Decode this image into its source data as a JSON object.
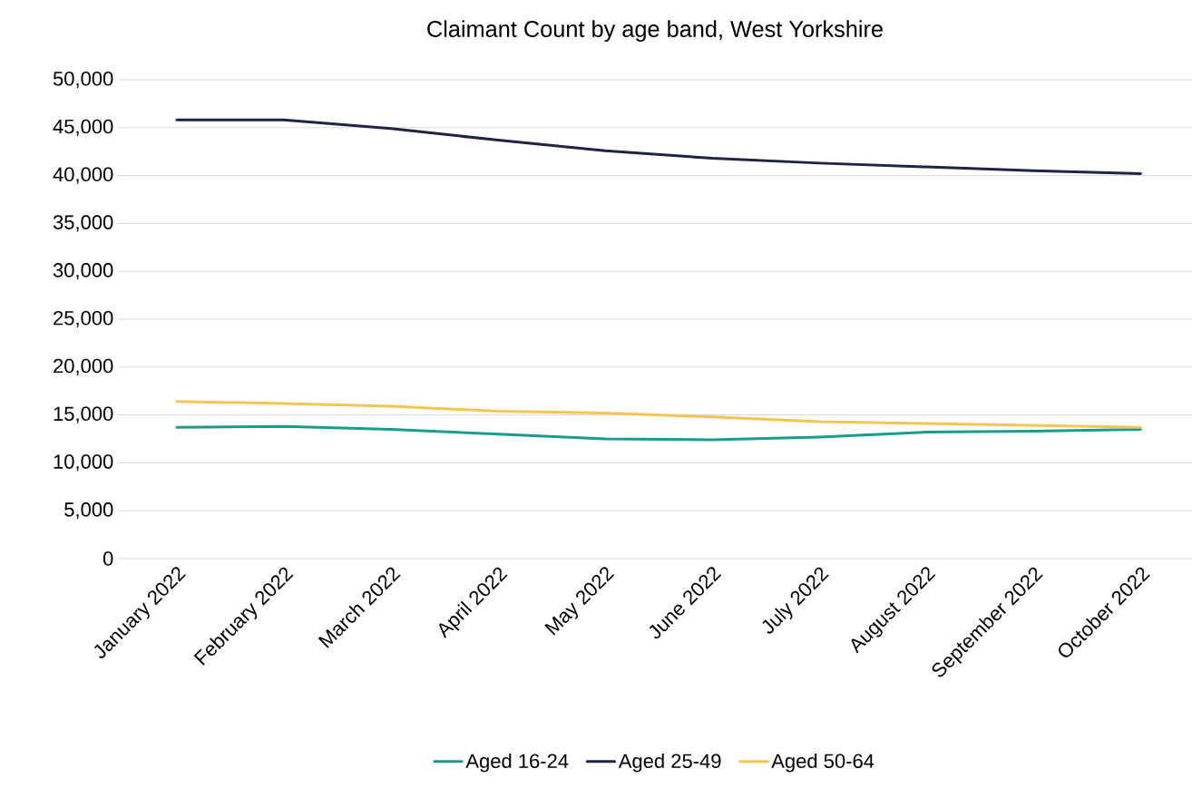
{
  "chart_data": {
    "type": "line",
    "title": "Claimant Count by age band, West Yorkshire",
    "categories": [
      "January 2022",
      "February 2022",
      "March 2022",
      "April 2022",
      "May 2022",
      "June 2022",
      "July 2022",
      "August 2022",
      "September 2022",
      "October 2022"
    ],
    "series": [
      {
        "name": "Aged 16-24",
        "color": "#1a9c8c",
        "values": [
          13700,
          13800,
          13500,
          13000,
          12500,
          12400,
          12700,
          13200,
          13300,
          13500
        ]
      },
      {
        "name": "Aged 25-49",
        "color": "#1c2541",
        "values": [
          45800,
          45800,
          44900,
          43700,
          42600,
          41800,
          41300,
          40900,
          40500,
          40200
        ]
      },
      {
        "name": "Aged 50-64",
        "color": "#f9c350",
        "values": [
          16400,
          16200,
          15900,
          15400,
          15200,
          14800,
          14300,
          14100,
          13900,
          13700
        ]
      }
    ],
    "ylim": [
      0,
      50000
    ],
    "yticks": [
      0,
      {
        "value": 5000,
        "label": "5,000"
      },
      {
        "value": 10000,
        "label": "10,000"
      },
      {
        "value": 15000,
        "label": "15,000"
      },
      {
        "value": 20000,
        "label": "20,000"
      },
      {
        "value": 25000,
        "label": "25,000"
      },
      {
        "value": 30000,
        "label": "30,000"
      },
      {
        "value": 35000,
        "label": "35,000"
      },
      {
        "value": 40000,
        "label": "40,000"
      },
      {
        "value": 45000,
        "label": "45,000"
      },
      {
        "value": 50000,
        "label": "50,000"
      }
    ],
    "grid": "y",
    "legend": "bottom",
    "line_style": "solid"
  }
}
